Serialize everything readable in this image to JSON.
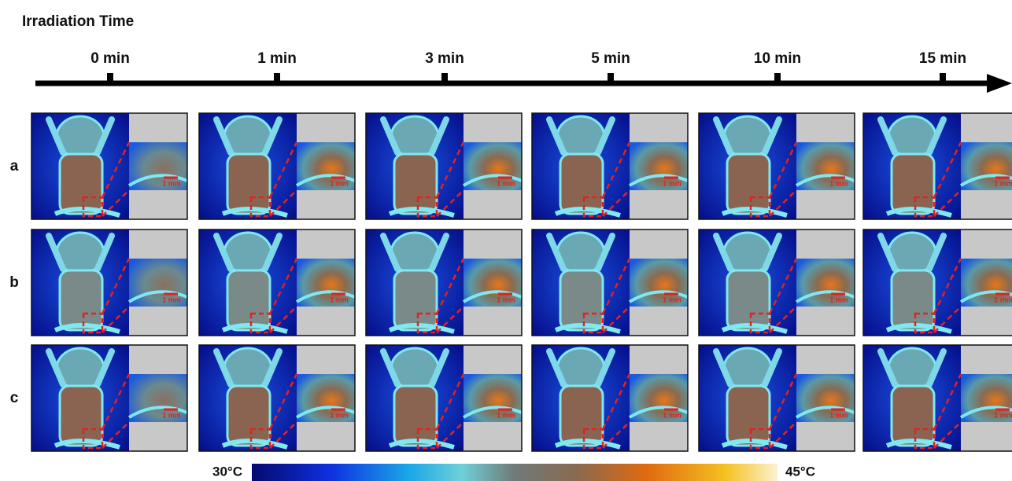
{
  "header": {
    "title": "Irradiation Time"
  },
  "timeline": {
    "labels": [
      "0 min",
      "1 min",
      "3 min",
      "5 min",
      "10 min",
      "15 min"
    ]
  },
  "rows": {
    "labels": [
      "a",
      "b",
      "c"
    ]
  },
  "panels": {
    "scale_bar_label": "1 mm"
  },
  "colorbar": {
    "min_label": "30°C",
    "max_label": "45°C"
  }
}
